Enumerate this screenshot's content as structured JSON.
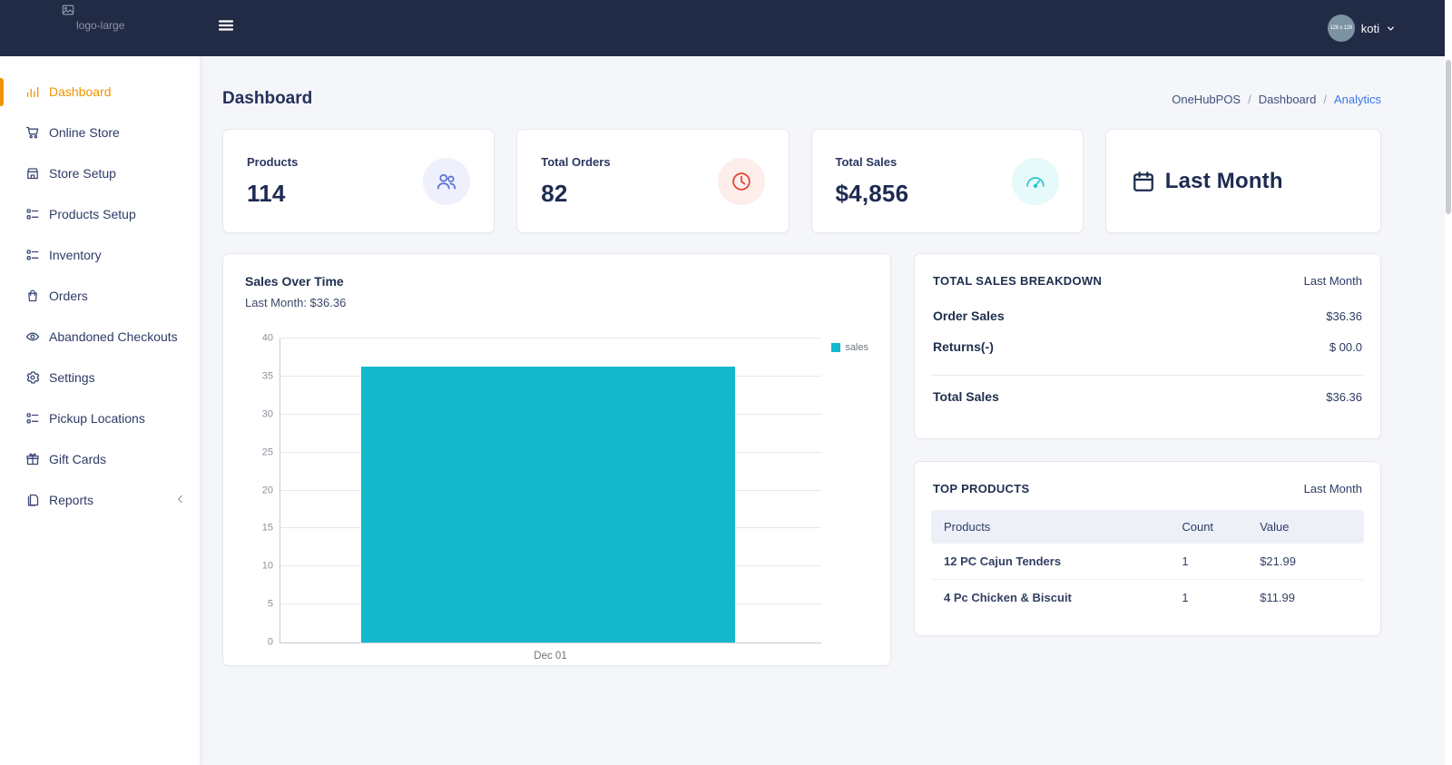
{
  "topbar": {
    "logo_alt": "logo-large",
    "user_name": "koti",
    "avatar_placeholder": "128 x 128"
  },
  "sidebar": {
    "active_color": "#ef9400",
    "items": [
      {
        "label": "Dashboard",
        "icon": "bar-chart-icon",
        "active": true
      },
      {
        "label": "Online Store",
        "icon": "cart-icon"
      },
      {
        "label": "Store Setup",
        "icon": "store-icon"
      },
      {
        "label": "Products Setup",
        "icon": "list-icon"
      },
      {
        "label": "Inventory",
        "icon": "list-icon"
      },
      {
        "label": "Orders",
        "icon": "bag-icon"
      },
      {
        "label": "Abandoned Checkouts",
        "icon": "eye-icon"
      },
      {
        "label": "Settings",
        "icon": "gear-icon"
      },
      {
        "label": "Pickup Locations",
        "icon": "list-icon"
      },
      {
        "label": "Gift Cards",
        "icon": "gift-icon"
      },
      {
        "label": "Reports",
        "icon": "files-icon",
        "collapsible": true
      }
    ]
  },
  "page": {
    "title": "Dashboard",
    "breadcrumb": [
      "OneHubPOS",
      "Dashboard",
      "Analytics"
    ],
    "breadcrumb_separator": "/",
    "breadcrumb_active_color": "#3b78e7"
  },
  "stats": [
    {
      "label": "Products",
      "value": "114",
      "icon": "users-icon",
      "color": "#5b6fd8",
      "bg": "#eef0fb"
    },
    {
      "label": "Total Orders",
      "value": "82",
      "icon": "clock-icon",
      "color": "#e2442e",
      "bg": "#fdeeec"
    },
    {
      "label": "Total Sales",
      "value": "$4,856",
      "icon": "gauge-icon",
      "color": "#2ac7d3",
      "bg": "#e6f9fb"
    }
  ],
  "period_card": {
    "label": "Last Month",
    "icon": "calendar-icon"
  },
  "chart_card": {
    "title": "Sales Over Time",
    "subtitle": "Last Month: $36.36",
    "legend_label": "sales"
  },
  "chart_data": {
    "type": "bar",
    "title": "Sales Over Time",
    "categories": [
      "Dec 01"
    ],
    "series": [
      {
        "name": "sales",
        "values": [
          36.36
        ]
      }
    ],
    "xlabel": "",
    "ylabel": "",
    "ylim": [
      0,
      40
    ],
    "yticks": [
      0,
      5,
      10,
      15,
      20,
      25,
      30,
      35,
      40
    ],
    "bar_color": "#14b8cd",
    "grid": true,
    "legend_position": "top-right"
  },
  "sales_breakdown": {
    "title": "TOTAL SALES BREAKDOWN",
    "period": "Last Month",
    "rows": [
      {
        "label": "Order Sales",
        "value": "$36.36"
      },
      {
        "label": "Returns(-)",
        "value": "$ 00.0"
      }
    ],
    "total_row": {
      "label": "Total Sales",
      "value": "$36.36"
    }
  },
  "top_products": {
    "title": "TOP PRODUCTS",
    "period": "Last Month",
    "columns": [
      "Products",
      "Count",
      "Value"
    ],
    "rows": [
      {
        "product": "12 PC Cajun Tenders",
        "count": "1",
        "value": "$21.99"
      },
      {
        "product": "4 Pc Chicken & Biscuit",
        "count": "1",
        "value": "$11.99"
      }
    ]
  }
}
